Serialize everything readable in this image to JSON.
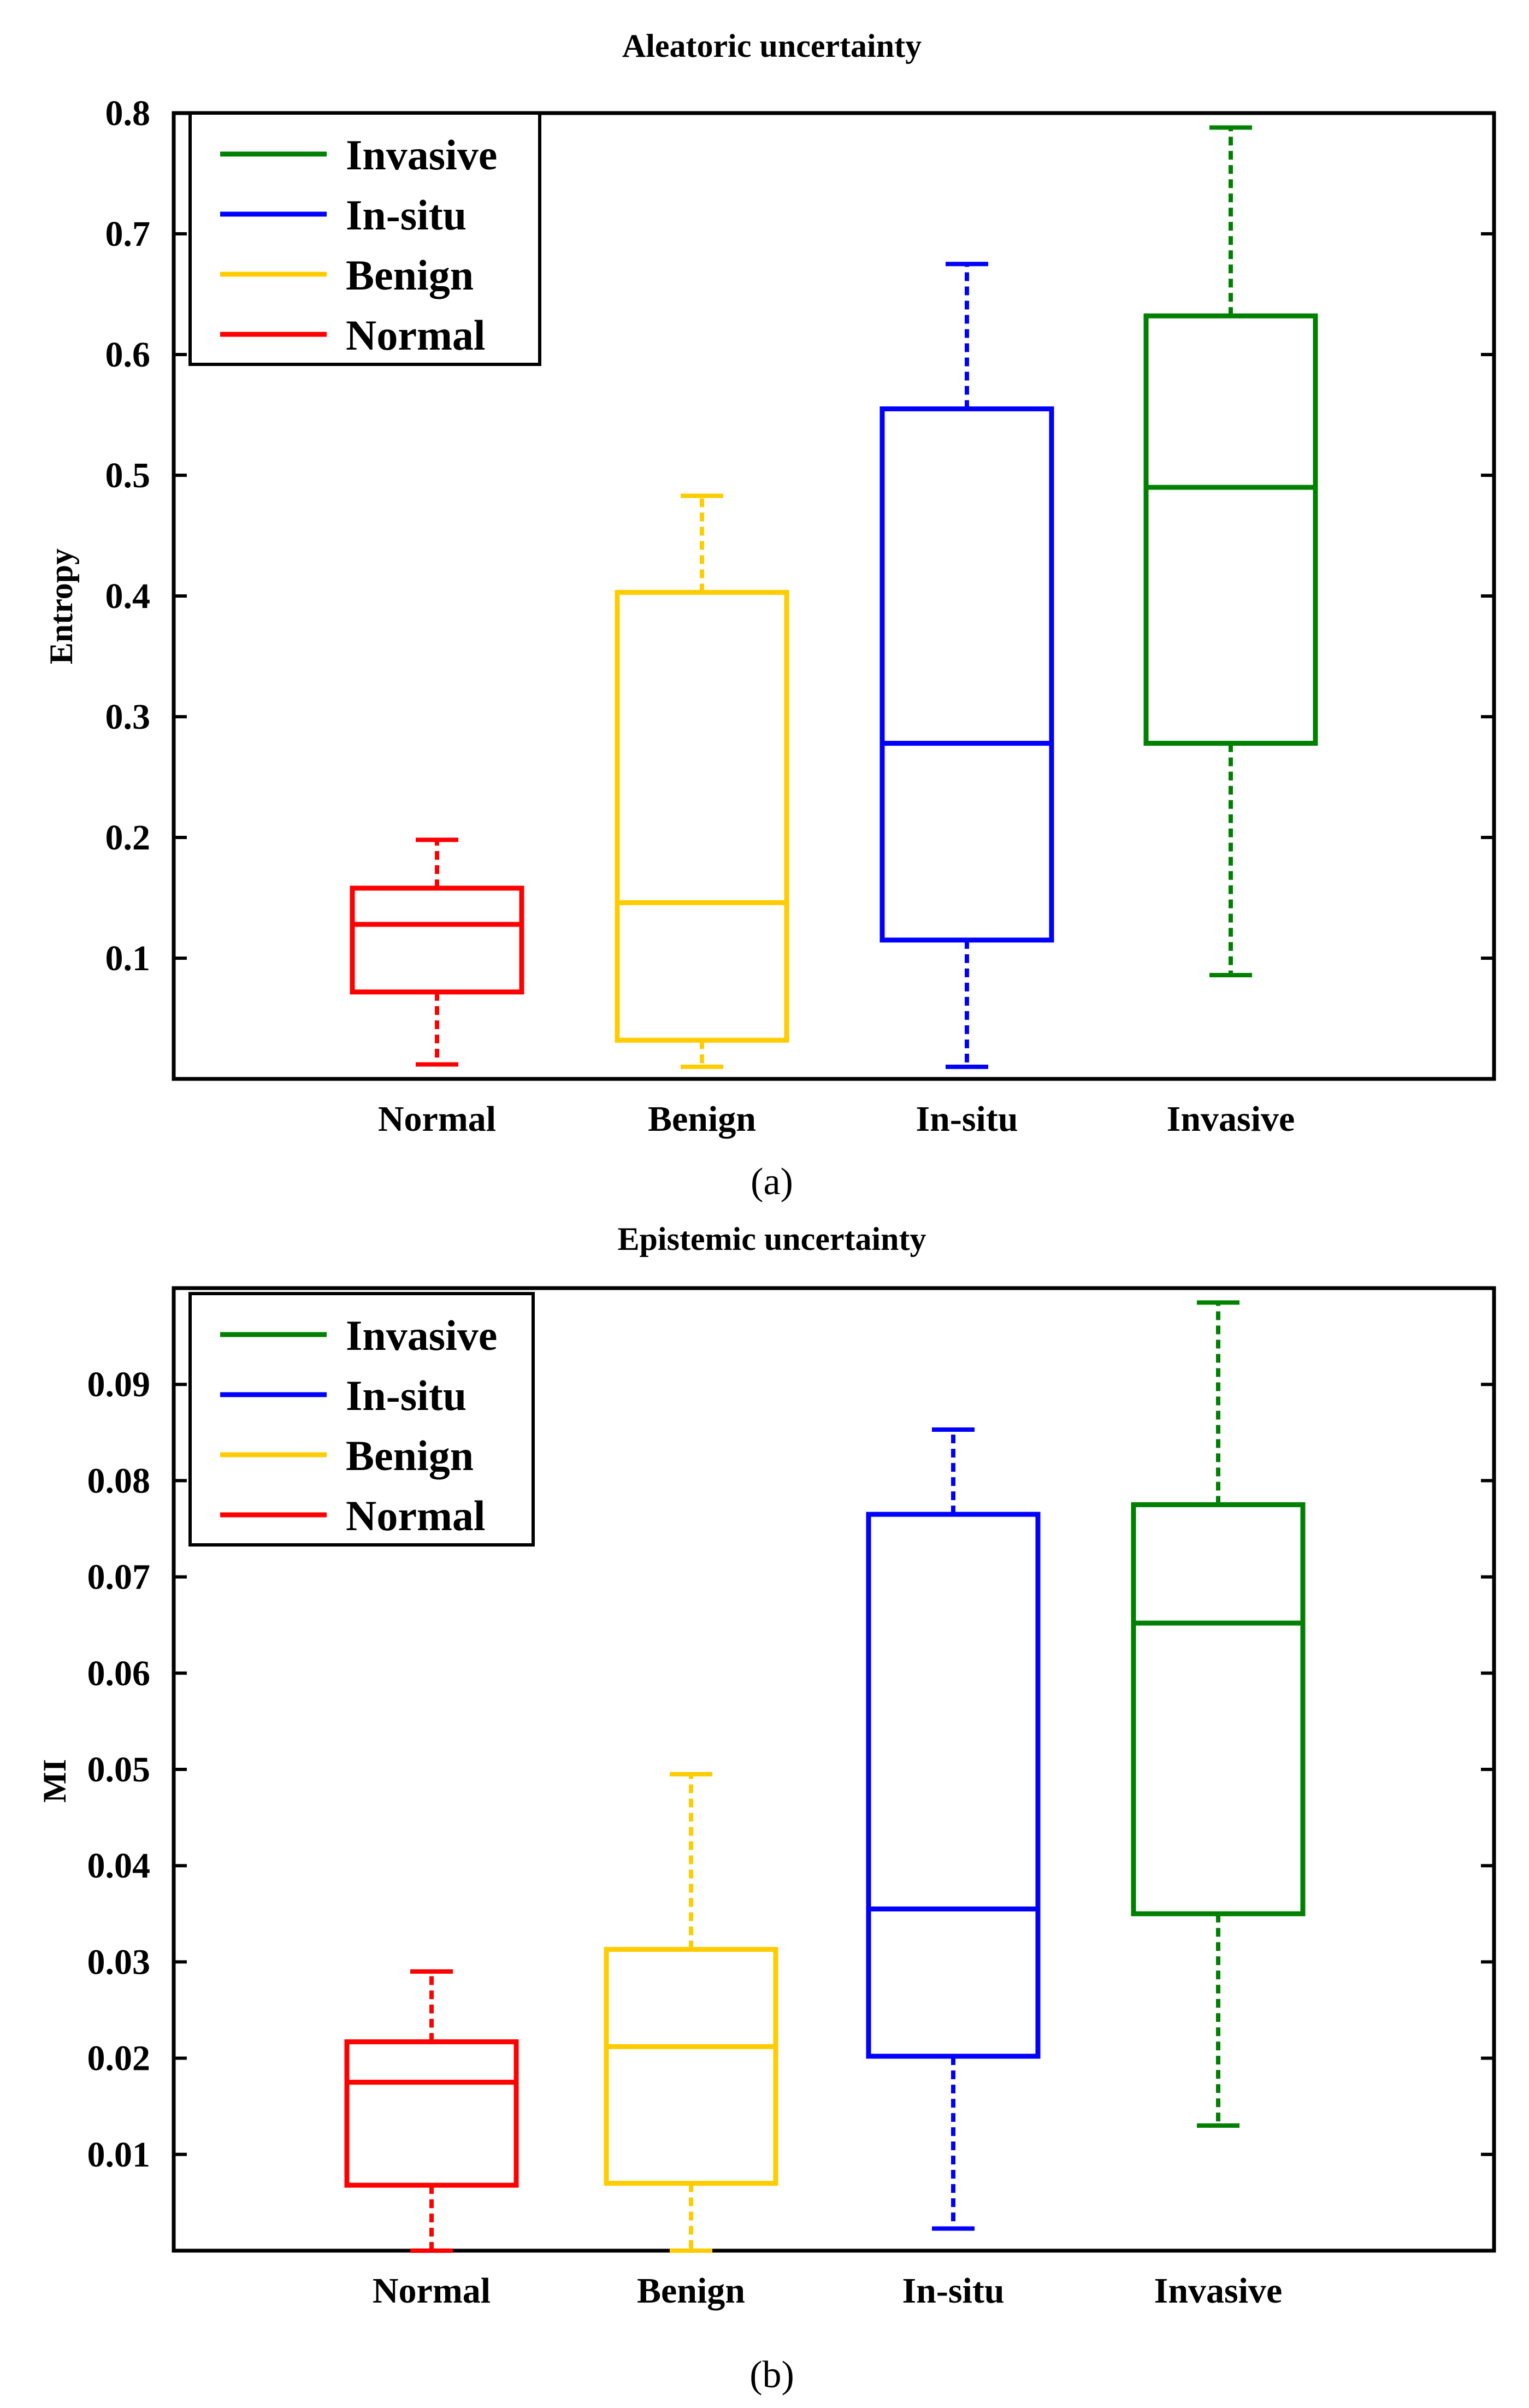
{
  "chart_data": [
    {
      "type": "box",
      "title": "Aleatoric uncertainty",
      "xlabel": "",
      "ylabel": "Entropy",
      "ylim": [
        0,
        0.8
      ],
      "yticks": [
        "0.1",
        "0.2",
        "0.3",
        "0.4",
        "0.5",
        "0.6",
        "0.7",
        "0.8"
      ],
      "categories": [
        "Normal",
        "Benign",
        "In-situ",
        "Invasive"
      ],
      "legend": [
        "Invasive",
        "In-situ",
        "Benign",
        "Normal"
      ],
      "legend_position": "top-left",
      "caption": "(a)",
      "series": [
        {
          "category": "Normal",
          "color": "#ff0000",
          "min": 0.012,
          "q1": 0.072,
          "median": 0.128,
          "q3": 0.158,
          "max": 0.198
        },
        {
          "category": "Benign",
          "color": "#ffcc00",
          "min": 0.01,
          "q1": 0.032,
          "median": 0.146,
          "q3": 0.403,
          "max": 0.483
        },
        {
          "category": "In-situ",
          "color": "#0000ff",
          "min": 0.01,
          "q1": 0.115,
          "median": 0.278,
          "q3": 0.555,
          "max": 0.675
        },
        {
          "category": "Invasive",
          "color": "#008000",
          "min": 0.086,
          "q1": 0.278,
          "median": 0.49,
          "q3": 0.632,
          "max": 0.788
        }
      ]
    },
    {
      "type": "box",
      "title": "Epistemic uncertainty",
      "xlabel": "",
      "ylabel": "MI",
      "ylim": [
        0,
        0.1
      ],
      "yticks": [
        "0.01",
        "0.02",
        "0.03",
        "0.04",
        "0.05",
        "0.06",
        "0.07",
        "0.08",
        "0.09"
      ],
      "categories": [
        "Normal",
        "Benign",
        "In-situ",
        "Invasive"
      ],
      "legend": [
        "Invasive",
        "In-situ",
        "Benign",
        "Normal"
      ],
      "legend_position": "top-left",
      "caption": "(b)",
      "series": [
        {
          "category": "Normal",
          "color": "#ff0000",
          "min": 0.0,
          "q1": 0.0068,
          "median": 0.0175,
          "q3": 0.0217,
          "max": 0.029
        },
        {
          "category": "Benign",
          "color": "#ffcc00",
          "min": 0.0,
          "q1": 0.007,
          "median": 0.0212,
          "q3": 0.0313,
          "max": 0.0495
        },
        {
          "category": "In-situ",
          "color": "#0000ff",
          "min": 0.0023,
          "q1": 0.0202,
          "median": 0.0355,
          "q3": 0.0765,
          "max": 0.0853
        },
        {
          "category": "Invasive",
          "color": "#008000",
          "min": 0.013,
          "q1": 0.035,
          "median": 0.0652,
          "q3": 0.0775,
          "max": 0.0985
        }
      ]
    }
  ]
}
